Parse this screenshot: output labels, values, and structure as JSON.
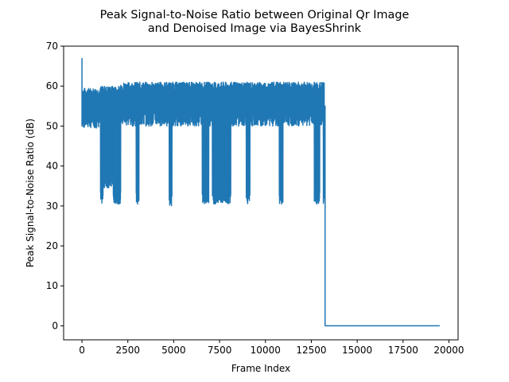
{
  "chart_data": {
    "type": "line",
    "title_line1": "Peak Signal-to-Noise Ratio between Original Qr Image",
    "title_line2": "and Denoised Image via BayesShrink",
    "xlabel": "Frame Index",
    "ylabel": "Peak Signal-to-Noise Ratio (dB)",
    "xlim": [
      -1000,
      20500
    ],
    "ylim": [
      -3.5,
      70
    ],
    "xticks": [
      0,
      2500,
      5000,
      7500,
      10000,
      12500,
      15000,
      17500,
      20000
    ],
    "xtick_labels": [
      "0",
      "2500",
      "5000",
      "7500",
      "10000",
      "12500",
      "15000",
      "17500",
      "20000"
    ],
    "yticks": [
      0,
      10,
      20,
      30,
      40,
      50,
      60,
      70
    ],
    "ytick_labels": [
      "0",
      "10",
      "20",
      "30",
      "40",
      "50",
      "60",
      "70"
    ],
    "grid": false,
    "line_color": "#1f77b4",
    "series": [
      {
        "description_points": {
          "spike": {
            "x": 0,
            "y": 67
          },
          "band_start": {
            "x": 0,
            "y_low": 50,
            "y_high": 58
          },
          "band_segments": [
            {
              "x_start": 0,
              "x_end": 1000,
              "y_low": 49.5,
              "y_high": 59.5
            },
            {
              "x_start": 1000,
              "x_end": 2100,
              "y_low": 49.5,
              "y_high": 60
            },
            {
              "x_start": 2100,
              "x_end": 13200,
              "y_low": 50,
              "y_high": 61
            }
          ],
          "drops": [
            {
              "x_start": 1000,
              "x_end": 1150,
              "y_min": 30.5
            },
            {
              "x_start": 1150,
              "x_end": 1700,
              "y_min": 34.5
            },
            {
              "x_start": 1700,
              "x_end": 2100,
              "y_min": 30.5
            },
            {
              "x_start": 2950,
              "x_end": 3100,
              "y_min": 30.5
            },
            {
              "x_start": 4750,
              "x_end": 4900,
              "y_min": 30
            },
            {
              "x_start": 6550,
              "x_end": 6900,
              "y_min": 30.5
            },
            {
              "x_start": 7100,
              "x_end": 8100,
              "y_min": 30.5
            },
            {
              "x_start": 8950,
              "x_end": 9150,
              "y_min": 30.5
            },
            {
              "x_start": 10750,
              "x_end": 10950,
              "y_min": 30.5
            },
            {
              "x_start": 12650,
              "x_end": 12950,
              "y_min": 30.5
            },
            {
              "x_start": 13150,
              "x_end": 13250,
              "y_min": 30.5
            }
          ],
          "tail": {
            "x_start": 13250,
            "x_end": 19500,
            "y": 0
          }
        }
      }
    ]
  }
}
